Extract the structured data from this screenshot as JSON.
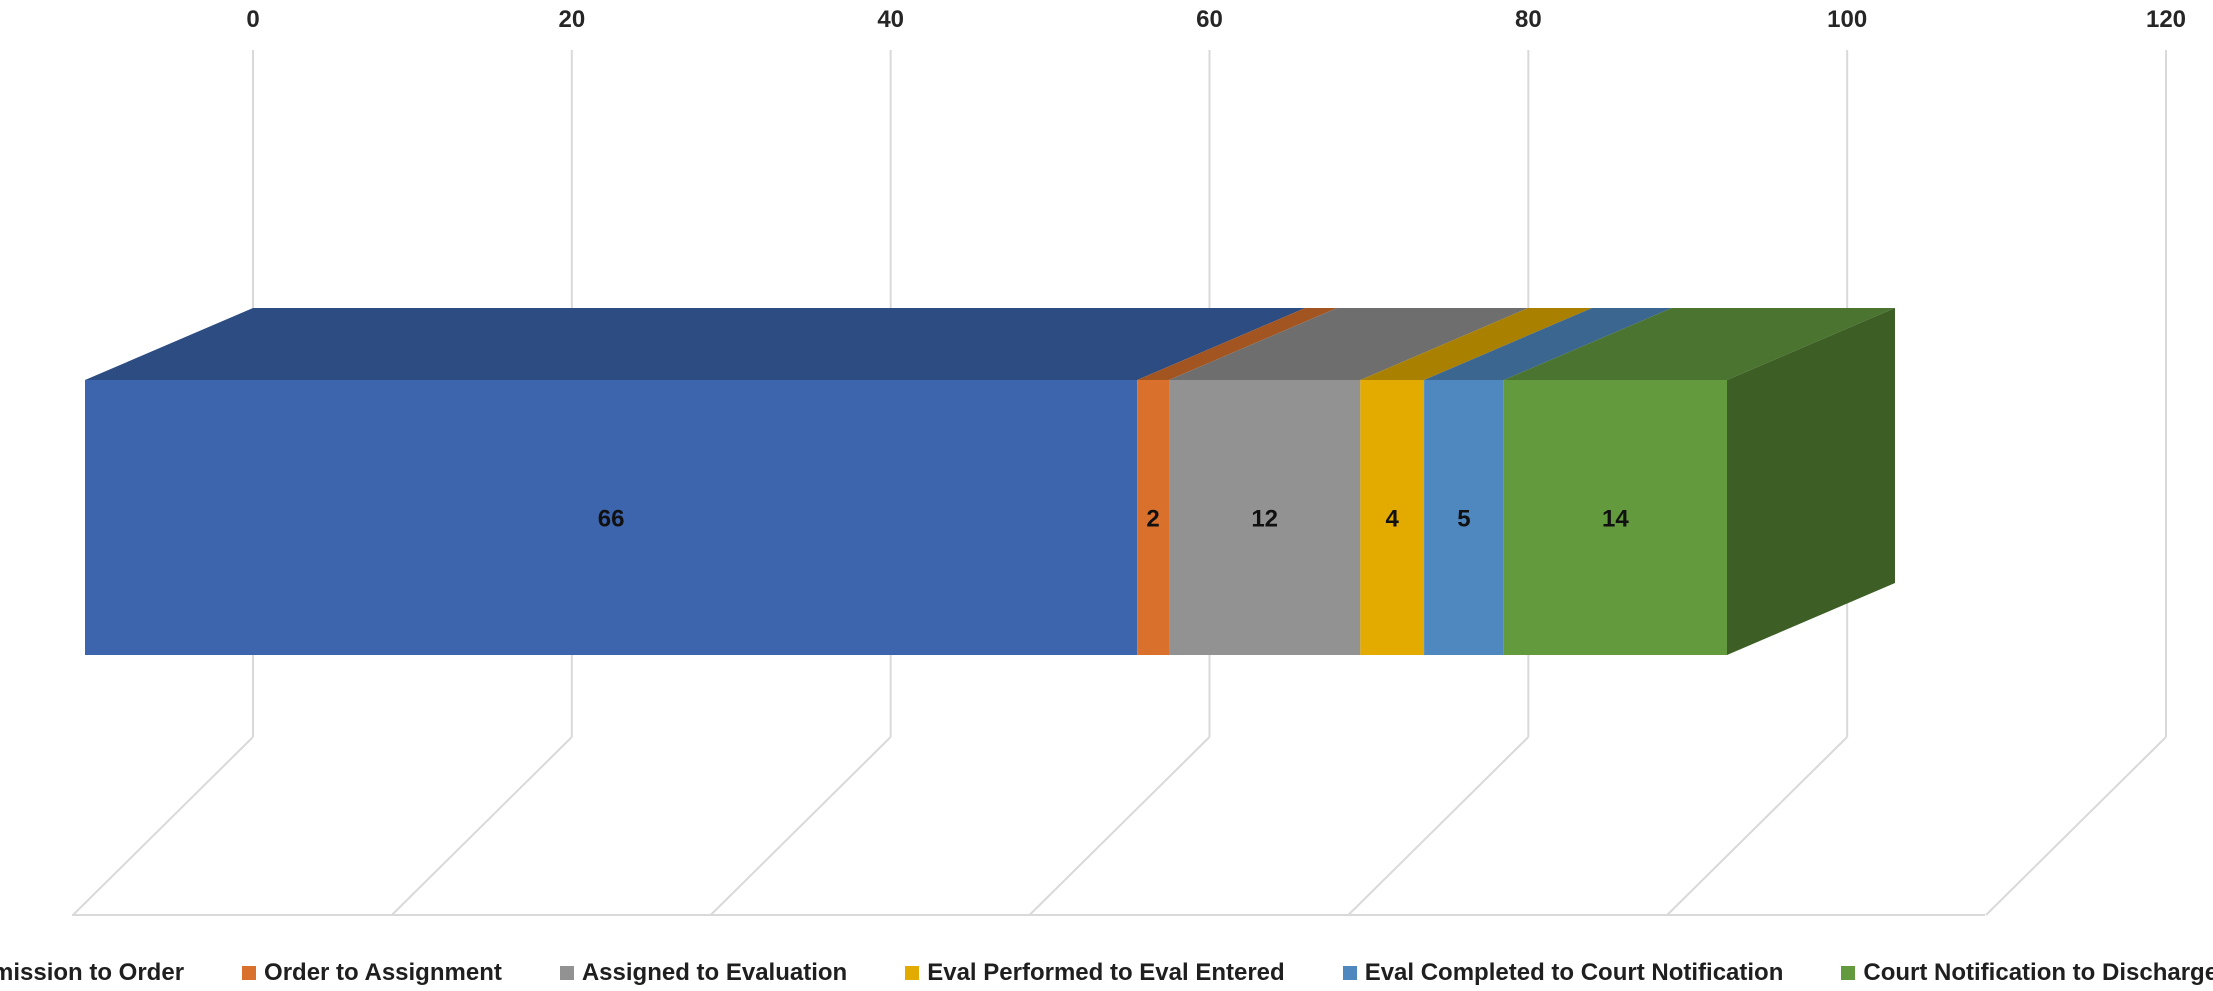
{
  "chart_data": {
    "type": "bar",
    "orientation": "horizontal",
    "stacked": true,
    "three_d": true,
    "title": "",
    "xlabel": "",
    "ylabel": "",
    "xlim": [
      0,
      120
    ],
    "ticks": [
      "0",
      "20",
      "40",
      "60",
      "80",
      "100",
      "120"
    ],
    "grid": true,
    "legend_position": "bottom",
    "categories": [
      ""
    ],
    "series": [
      {
        "name": "Admission to Order",
        "values": [
          66
        ],
        "label": "66",
        "color": "#3c65ad"
      },
      {
        "name": "Order to Assignment",
        "values": [
          2
        ],
        "label": "2",
        "color": "#d9712c"
      },
      {
        "name": "Assigned to Evaluation",
        "values": [
          12
        ],
        "label": "12",
        "color": "#929292"
      },
      {
        "name": "Eval Performed to Eval Entered",
        "values": [
          4
        ],
        "label": "4",
        "color": "#e3aa00"
      },
      {
        "name": "Eval Completed to Court Notification",
        "values": [
          5
        ],
        "label": "5",
        "color": "#4e88bf"
      },
      {
        "name": "Court Notification to Discharge",
        "values": [
          14
        ],
        "label": "14",
        "color": "#639a3e"
      }
    ]
  }
}
